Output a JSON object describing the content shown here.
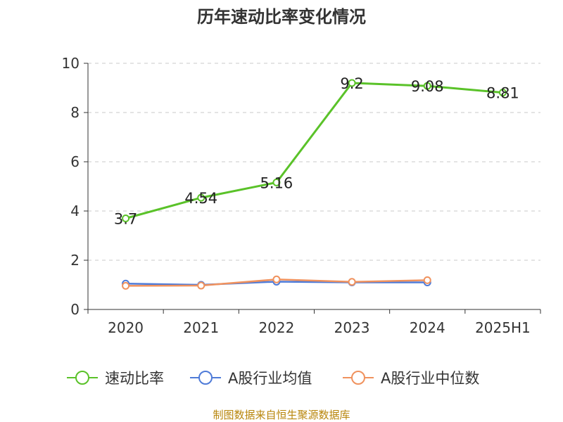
{
  "title": "历年速动比率变化情况",
  "source": "制图数据来自恒生聚源数据库",
  "chart_data": {
    "type": "line",
    "title": "历年速动比率变化情况",
    "categories": [
      "2020",
      "2021",
      "2022",
      "2023",
      "2024",
      "2025H1"
    ],
    "ylim": [
      0,
      10
    ],
    "yticks": [
      0,
      2,
      4,
      6,
      8,
      10
    ],
    "grid": true,
    "legend_position": "bottom",
    "series": [
      {
        "name": "速动比率",
        "color": "#5ac229",
        "values": [
          3.7,
          4.54,
          5.16,
          9.2,
          9.08,
          8.81
        ],
        "labels": [
          "3.7",
          "4.54",
          "5.16",
          "9.2",
          "9.08",
          "8.81"
        ]
      },
      {
        "name": "A股行业均值",
        "color": "#4f7bd8",
        "values": [
          1.05,
          1.0,
          1.13,
          1.1,
          1.1,
          null
        ]
      },
      {
        "name": "A股行业中位数",
        "color": "#f0925e",
        "values": [
          0.96,
          0.97,
          1.22,
          1.12,
          1.19,
          null
        ]
      }
    ]
  }
}
